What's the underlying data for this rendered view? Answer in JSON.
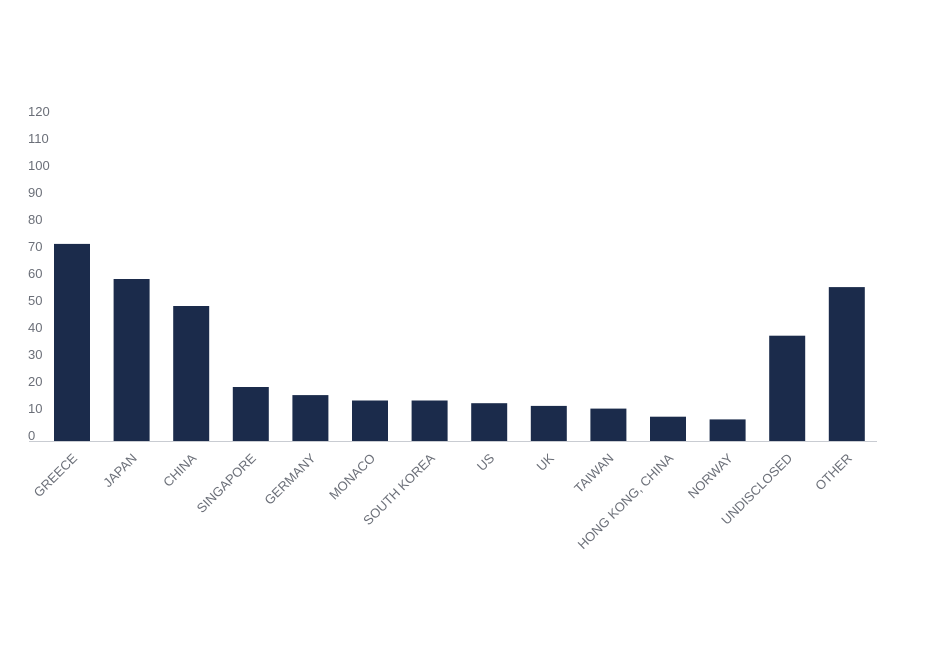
{
  "chart_data": {
    "type": "bar",
    "title": "",
    "xlabel": "",
    "ylabel": "",
    "categories": [
      "GREECE",
      "JAPAN",
      "CHINA",
      "SINGAPORE",
      "GERMANY",
      "MONACO",
      "SOUTH KOREA",
      "US",
      "UK",
      "TAIWAN",
      "HONG KONG, CHINA",
      "NORWAY",
      "UNDISCLOSED",
      "OTHER"
    ],
    "values": [
      73,
      60,
      50,
      20,
      17,
      15,
      15,
      14,
      13,
      12,
      9,
      8,
      39,
      57
    ],
    "ylim": [
      0,
      120
    ],
    "yticks": [
      0,
      10,
      20,
      30,
      40,
      50,
      60,
      70,
      80,
      90,
      100,
      110,
      120
    ],
    "grid": false,
    "legend": "none",
    "bar_color": "#1b2b4b",
    "axis_color": "#c9ccd2",
    "label_color": "#6b6f78"
  }
}
